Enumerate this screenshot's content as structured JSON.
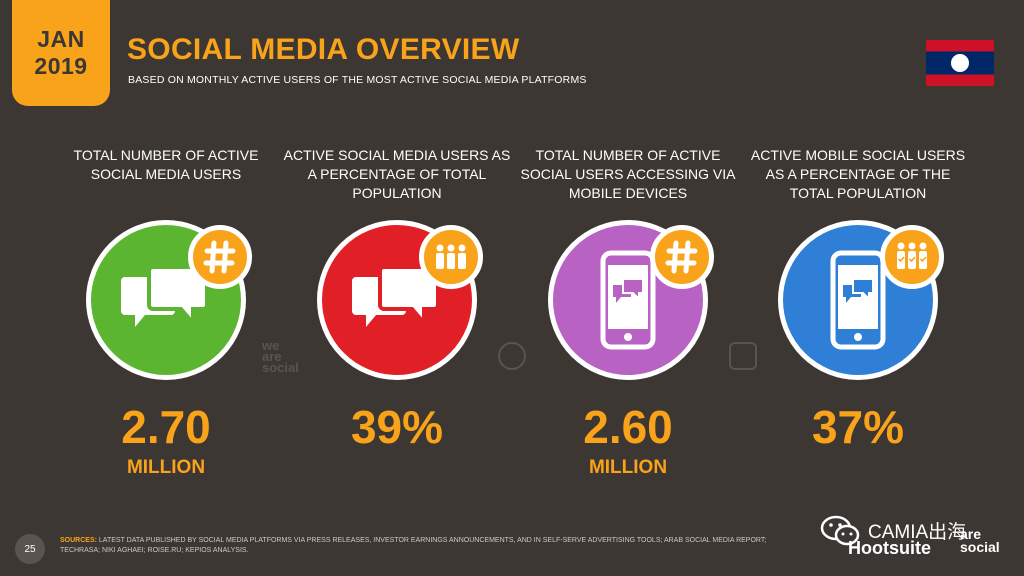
{
  "header": {
    "date_line1": "JAN",
    "date_line2": "2019",
    "title": "SOCIAL MEDIA OVERVIEW",
    "subtitle": "BASED ON MONTHLY ACTIVE USERS OF THE MOST ACTIVE SOCIAL MEDIA PLATFORMS"
  },
  "flag": {
    "country_icon": "laos-flag-icon",
    "colors": [
      "#ce1126",
      "#002868",
      "#ffffff"
    ]
  },
  "stats": [
    {
      "label": "TOTAL NUMBER OF ACTIVE SOCIAL MEDIA USERS",
      "value": "2.70",
      "unit": "MILLION",
      "color": "#5cb531",
      "icon": "chat-bubbles-icon",
      "badge_icon": "hash-icon"
    },
    {
      "label": "ACTIVE SOCIAL MEDIA USERS AS A PERCENTAGE OF TOTAL POPULATION",
      "value": "39%",
      "unit": "",
      "color": "#e11f26",
      "icon": "chat-bubbles-icon",
      "badge_icon": "people-icon"
    },
    {
      "label": "TOTAL NUMBER OF ACTIVE SOCIAL USERS ACCESSING VIA MOBILE DEVICES",
      "value": "2.60",
      "unit": "MILLION",
      "color": "#b862c4",
      "icon": "mobile-chat-icon",
      "badge_icon": "hash-icon"
    },
    {
      "label": "ACTIVE MOBILE SOCIAL USERS AS A PERCENTAGE OF THE TOTAL POPULATION",
      "value": "37%",
      "unit": "",
      "color": "#2f7fd6",
      "icon": "mobile-chat-icon",
      "badge_icon": "people-check-icon"
    }
  ],
  "watermark": {
    "text_line1": "we",
    "text_line2": "are",
    "text_line3": "social"
  },
  "footer": {
    "page_number": "25",
    "sources_label": "SOURCES:",
    "sources_text": "LATEST DATA PUBLISHED BY SOCIAL MEDIA PLATFORMS VIA PRESS RELEASES, INVESTOR EARNINGS ANNOUNCEMENTS, AND IN SELF-SERVE ADVERTISING TOOLS; ARAB SOCIAL MEDIA REPORT; TECHRASA; NIKI AGHAEI; ROISE.RU; KEPIOS ANALYSIS.",
    "wechat_label": "CAMIA出海",
    "brand_hootsuite": "Hootsuite",
    "brand_was_line1": "are",
    "brand_was_line2": "social"
  }
}
